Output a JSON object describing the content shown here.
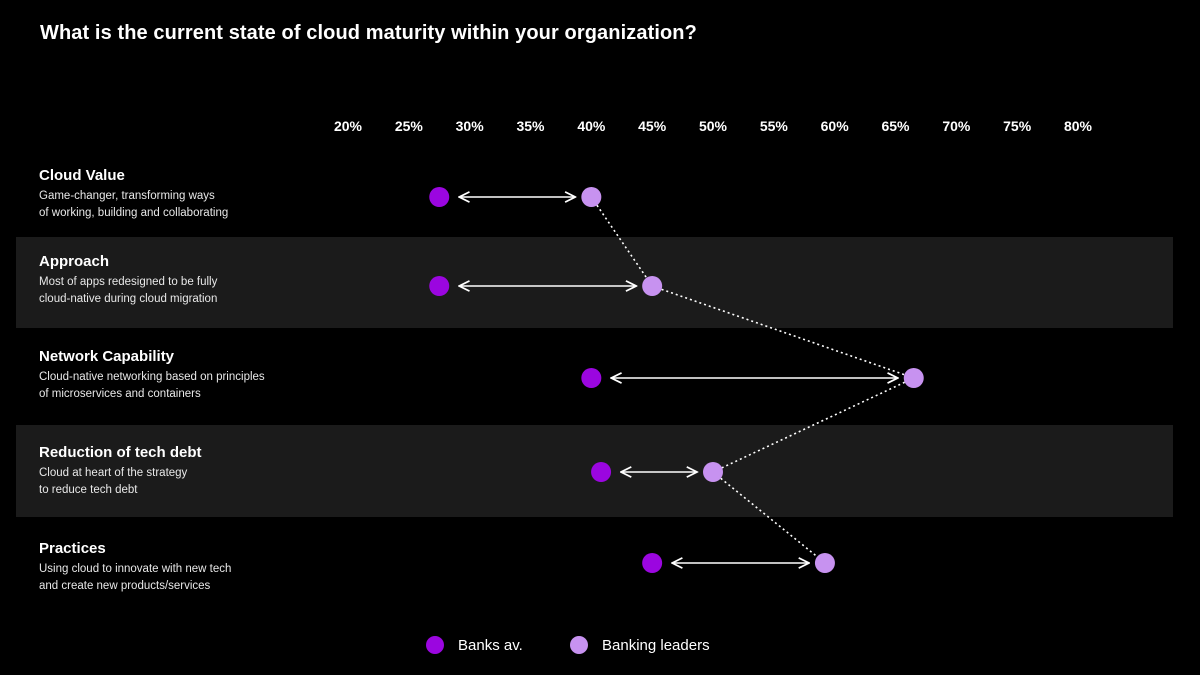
{
  "title": "What is the current state of cloud maturity within your organization?",
  "colors": {
    "background": "#000000",
    "band": "#1b1b1b",
    "banks_avg": "#9b06e0",
    "banking_leaders": "#c792f0",
    "connector": "#ffffff"
  },
  "chart_data": {
    "type": "dumbbell",
    "title": "What is the current state of cloud maturity within your organization?",
    "x_tick_labels": [
      "20%",
      "25%",
      "30%",
      "35%",
      "40%",
      "45%",
      "50%",
      "55%",
      "60%",
      "65%",
      "70%",
      "75%",
      "80%"
    ],
    "x_ticks": [
      20,
      25,
      30,
      35,
      40,
      45,
      50,
      55,
      60,
      65,
      70,
      75,
      80
    ],
    "xlim": [
      20,
      80
    ],
    "x_unit": "%",
    "grid": false,
    "legend_position": "bottom-center",
    "series": [
      {
        "name": "Banks av.",
        "color": "#9b06e0"
      },
      {
        "name": "Banking leaders",
        "color": "#c792f0"
      }
    ],
    "categories": [
      {
        "title": "Cloud Value",
        "desc_lines": [
          "Game-changer, transforming ways",
          "of working, building and collaborating"
        ],
        "banks_avg": 27.5,
        "banking_leaders": 40,
        "banded": false
      },
      {
        "title": "Approach",
        "desc_lines": [
          "Most of apps redesigned to be fully",
          "cloud-native during cloud migration"
        ],
        "banks_avg": 27.5,
        "banking_leaders": 45,
        "banded": true
      },
      {
        "title": "Network Capability",
        "desc_lines": [
          "Cloud-native networking based on principles",
          "of microservices and containers"
        ],
        "banks_avg": 40,
        "banking_leaders": 66.5,
        "banded": false
      },
      {
        "title": "Reduction of tech debt",
        "desc_lines": [
          "Cloud at heart of the strategy",
          "to reduce tech debt"
        ],
        "banks_avg": 40.8,
        "banking_leaders": 50,
        "banded": true
      },
      {
        "title": "Practices",
        "desc_lines": [
          "Using cloud to innovate with new tech",
          "and create new products/services"
        ],
        "banks_avg": 45,
        "banking_leaders": 59.2,
        "banded": false
      }
    ]
  }
}
